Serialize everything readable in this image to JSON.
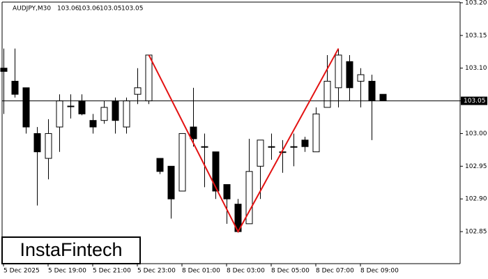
{
  "chart_data": {
    "type": "candlestick",
    "header": {
      "symbol": "AUDJPY,M30",
      "ohlc": [
        103.06,
        103.06,
        103.05,
        103.05
      ]
    },
    "brand": "InstaFintech",
    "categories": [
      "5 Dec 2025",
      null,
      null,
      null,
      "5 Dec 19:00",
      null,
      null,
      null,
      "5 Dec 21:00",
      null,
      null,
      null,
      "5 Dec 23:00",
      null,
      null,
      null,
      "8 Dec 01:00",
      null,
      null,
      null,
      "8 Dec 03:00",
      null,
      null,
      null,
      "8 Dec 05:00",
      null,
      null,
      null,
      "8 Dec 07:00",
      null,
      null,
      null,
      "8 Dec 09:00",
      null,
      null
    ],
    "open": [
      103.1,
      103.08,
      103.07,
      103.0,
      102.962,
      103.01,
      103.042,
      103.05,
      103.02,
      103.02,
      103.05,
      103.01,
      103.06,
      103.05,
      102.962,
      102.95,
      102.912,
      103.01,
      102.98,
      102.972,
      102.922,
      102.892,
      102.862,
      102.95,
      102.98,
      102.972,
      102.98,
      102.99,
      102.972,
      103.04,
      103.07,
      103.11,
      103.08,
      103.08,
      103.06
    ],
    "high": [
      103.13,
      103.13,
      103.07,
      103.01,
      103.022,
      103.06,
      103.06,
      103.06,
      103.03,
      103.05,
      103.055,
      103.055,
      103.1,
      103.12,
      102.962,
      102.95,
      103.0,
      103.07,
      103.0,
      102.972,
      102.922,
      102.9,
      102.992,
      102.99,
      103.0,
      102.99,
      103.0,
      102.995,
      103.04,
      103.12,
      103.13,
      103.12,
      103.1,
      103.09,
      103.06
    ],
    "low": [
      103.03,
      103.055,
      103.0,
      102.89,
      102.93,
      102.972,
      103.023,
      103.028,
      103.0,
      103.015,
      103.0,
      103.0,
      103.045,
      103.045,
      102.938,
      102.87,
      102.912,
      102.98,
      102.918,
      102.9,
      102.862,
      102.85,
      102.862,
      102.9,
      102.96,
      102.94,
      102.95,
      102.972,
      102.972,
      103.04,
      103.04,
      103.05,
      103.04,
      102.99,
      103.05
    ],
    "close": [
      103.095,
      103.06,
      103.01,
      102.972,
      103.0,
      103.05,
      103.042,
      103.03,
      103.01,
      103.04,
      103.02,
      103.05,
      103.07,
      103.12,
      102.942,
      102.9,
      103.0,
      102.992,
      102.98,
      102.912,
      102.9,
      102.85,
      102.942,
      102.99,
      102.98,
      102.972,
      102.98,
      102.98,
      103.03,
      103.08,
      103.12,
      103.07,
      103.09,
      103.05,
      103.05
    ],
    "up_color": "#ffffff",
    "down_color": "#000000",
    "ylim": [
      102.801,
      103.201
    ],
    "yticks": [
      {
        "value": 103.2,
        "label": "103.20"
      },
      103.15,
      {
        "value": 103.1,
        "label": "103.10"
      },
      103.05,
      {
        "value": 103.0,
        "label": "103.00"
      },
      102.95,
      {
        "value": 102.9,
        "label": "102.90"
      },
      102.85
    ],
    "last_price": 103.05,
    "pattern_line": {
      "color": "#e31212",
      "x": [
        13,
        21,
        30
      ],
      "values": [
        103.12,
        102.85,
        103.13
      ]
    }
  }
}
